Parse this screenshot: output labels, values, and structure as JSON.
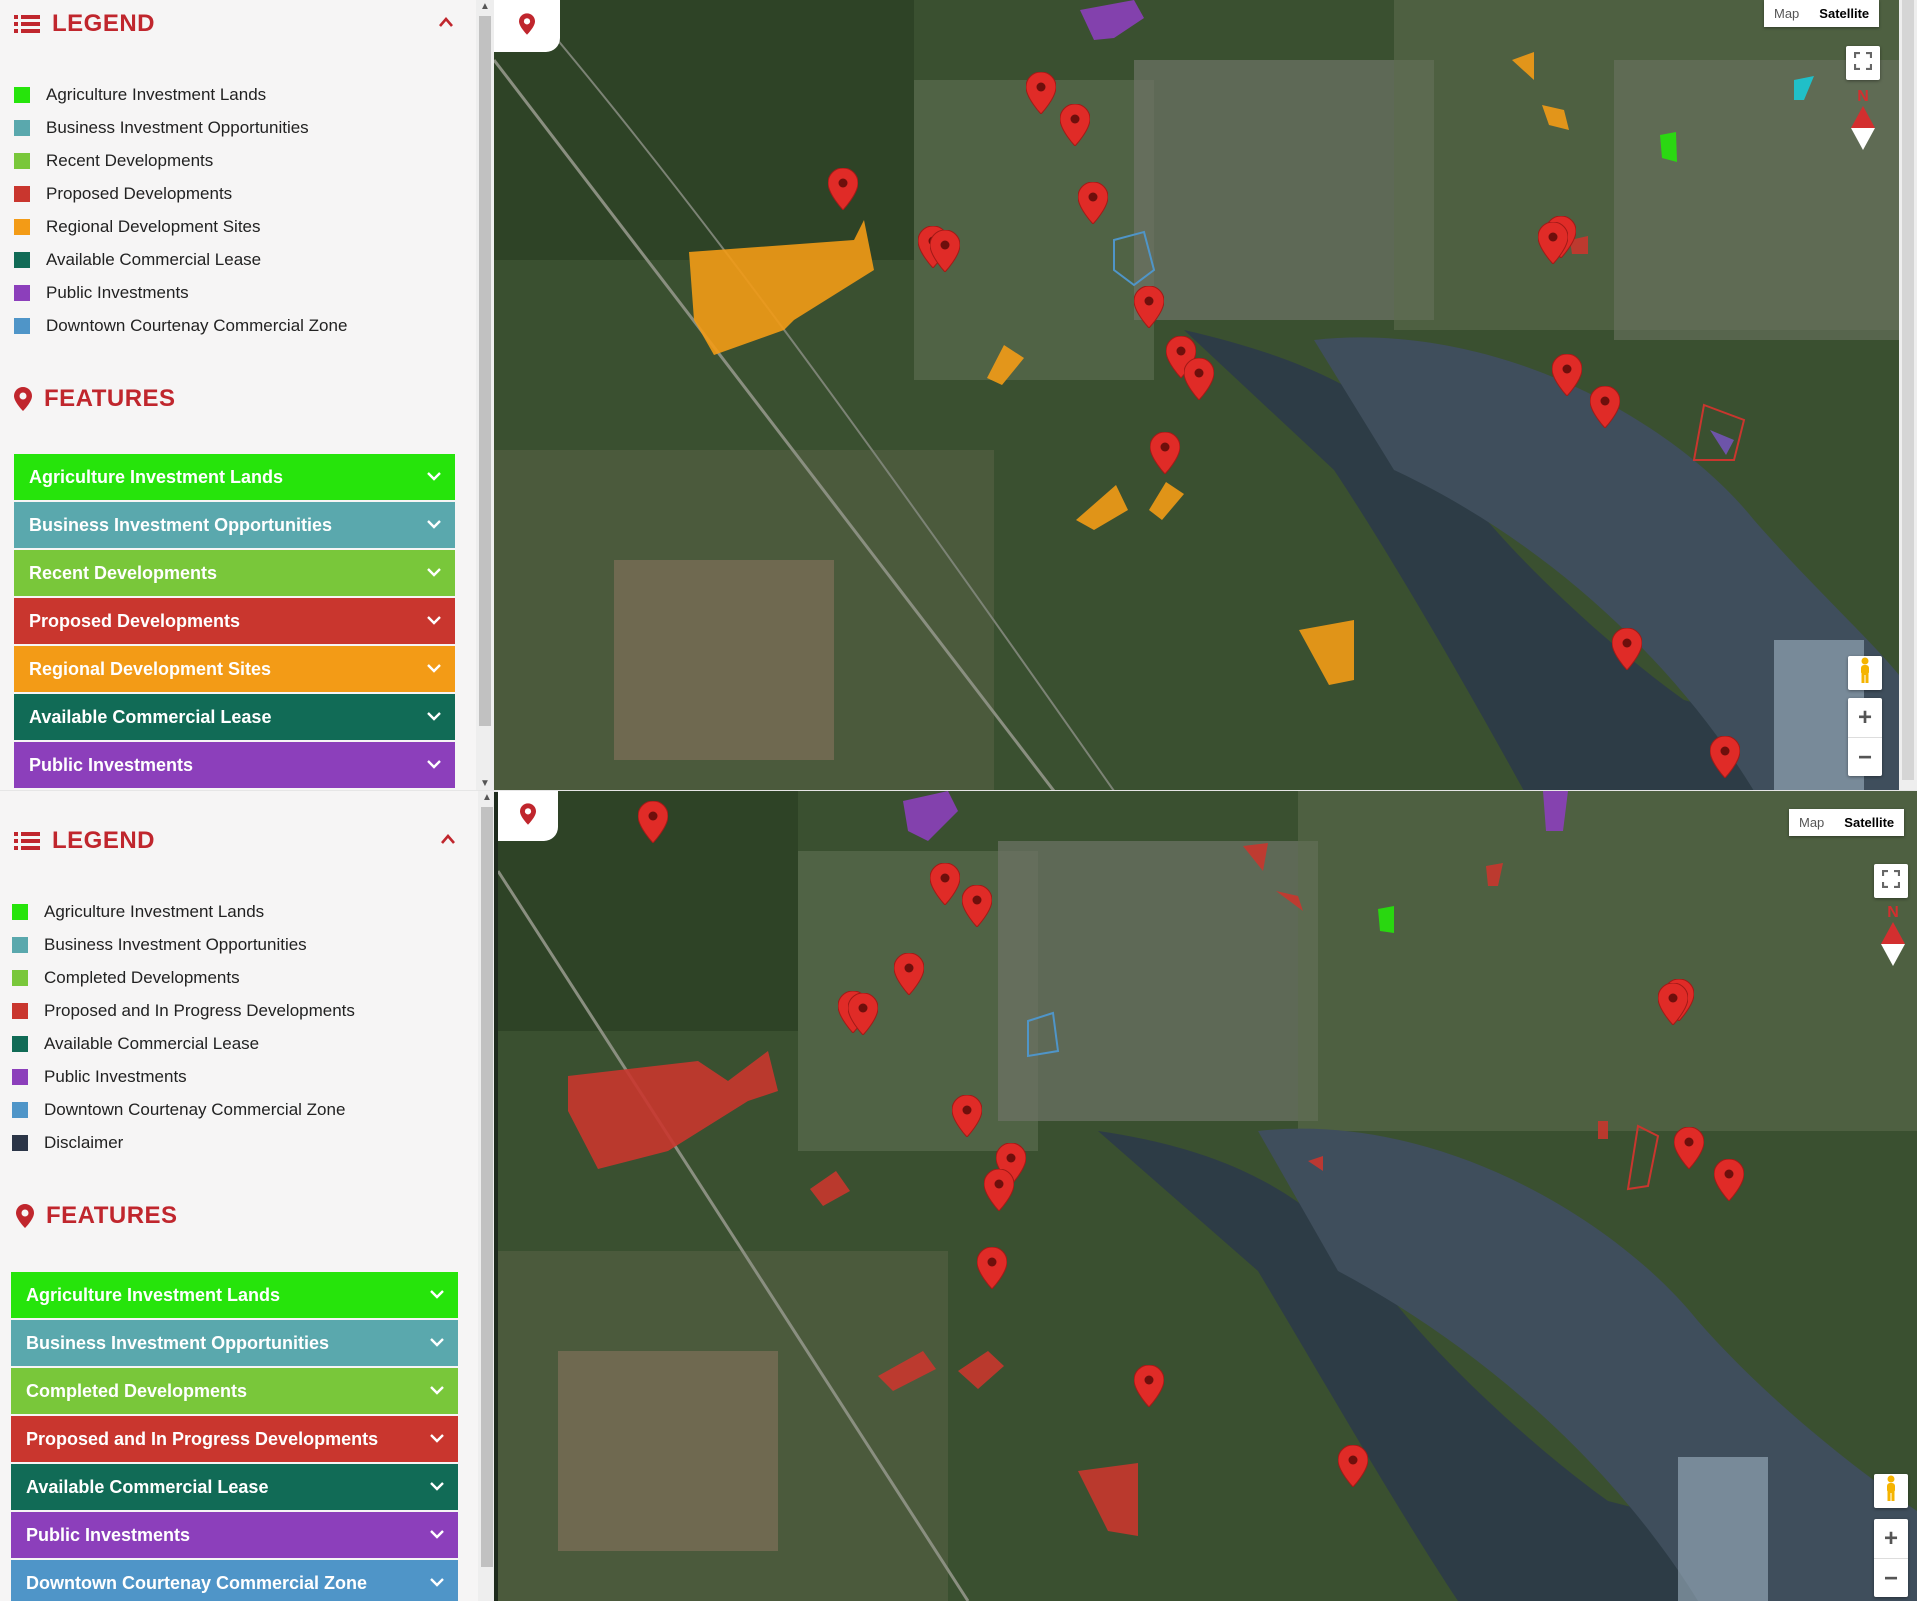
{
  "colors": {
    "agriculture": "#26e40b",
    "business": "#5aa8ad",
    "recent": "#79c73a",
    "proposed": "#c9362e",
    "regional": "#f39b16",
    "commercial_lease": "#116b56",
    "public": "#8c3fbb",
    "downtown": "#4f95c8",
    "disclaimer": "#2b3547",
    "brand_red": "#c0262d"
  },
  "top": {
    "legend_title": "LEGEND",
    "features_title": "FEATURES",
    "legend_items": [
      {
        "label": "Agriculture Investment Lands",
        "color": "#26e40b"
      },
      {
        "label": "Business Investment Opportunities",
        "color": "#5aa8ad"
      },
      {
        "label": "Recent Developments",
        "color": "#79c73a"
      },
      {
        "label": "Proposed Developments",
        "color": "#c9362e"
      },
      {
        "label": "Regional Development Sites",
        "color": "#f39b16"
      },
      {
        "label": "Available Commercial Lease",
        "color": "#116b56"
      },
      {
        "label": "Public Investments",
        "color": "#8c3fbb"
      },
      {
        "label": "Downtown Courtenay Commercial Zone",
        "color": "#4f95c8"
      }
    ],
    "features": [
      {
        "label": "Agriculture Investment Lands",
        "color": "#26e40b"
      },
      {
        "label": "Business Investment Opportunities",
        "color": "#5aa8ad"
      },
      {
        "label": "Recent Developments",
        "color": "#79c73a"
      },
      {
        "label": "Proposed Developments",
        "color": "#c9362e"
      },
      {
        "label": "Regional Development Sites",
        "color": "#f39b16"
      },
      {
        "label": "Available Commercial Lease",
        "color": "#116b56"
      },
      {
        "label": "Public Investments",
        "color": "#8c3fbb"
      }
    ],
    "map_type": {
      "map": "Map",
      "satellite": "Satellite"
    },
    "compass_n": "N"
  },
  "bottom": {
    "legend_title": "LEGEND",
    "features_title": "FEATURES",
    "legend_items": [
      {
        "label": "Agriculture Investment Lands",
        "color": "#26e40b"
      },
      {
        "label": "Business Investment Opportunities",
        "color": "#5aa8ad"
      },
      {
        "label": "Completed Developments",
        "color": "#79c73a"
      },
      {
        "label": "Proposed and In Progress Developments",
        "color": "#c9362e"
      },
      {
        "label": "Available Commercial Lease",
        "color": "#116b56"
      },
      {
        "label": "Public Investments",
        "color": "#8c3fbb"
      },
      {
        "label": "Downtown Courtenay Commercial Zone",
        "color": "#4f95c8"
      },
      {
        "label": "Disclaimer",
        "color": "#2b3547"
      }
    ],
    "features": [
      {
        "label": "Agriculture Investment Lands",
        "color": "#26e40b"
      },
      {
        "label": "Business Investment Opportunities",
        "color": "#5aa8ad"
      },
      {
        "label": "Completed Developments",
        "color": "#79c73a"
      },
      {
        "label": "Proposed and In Progress Developments",
        "color": "#c9362e"
      },
      {
        "label": "Available Commercial Lease",
        "color": "#116b56"
      },
      {
        "label": "Public Investments",
        "color": "#8c3fbb"
      },
      {
        "label": "Downtown Courtenay Commercial Zone",
        "color": "#4f95c8"
      }
    ],
    "map_type": {
      "map": "Map",
      "satellite": "Satellite"
    },
    "compass_n": "N"
  },
  "icons": {
    "legend": "list-icon",
    "features": "map-marker-icon",
    "collapse": "chevron-up-icon",
    "expand": "chevron-down-icon",
    "fullscreen": "fullscreen-icon",
    "street_view": "pegman-icon",
    "zoom_in": "plus-icon",
    "zoom_out": "minus-icon"
  }
}
